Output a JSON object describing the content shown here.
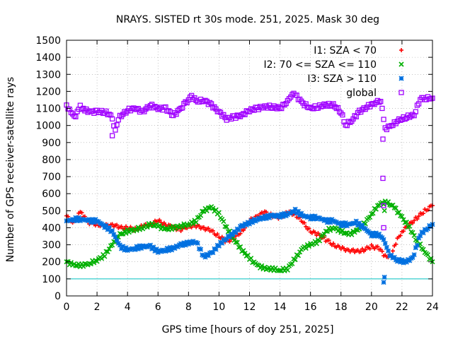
{
  "chart_data": {
    "type": "scatter",
    "title": "NRAYS. SISTED rt 30s mode. 251, 2025. Mask 30 deg",
    "xlabel": "GPS time [hours of doy 251, 2025]",
    "ylabel": "Number of GPS receiver-satellite rays",
    "xlim": [
      0,
      24
    ],
    "ylim": [
      0,
      1500
    ],
    "xticks": [
      0,
      2,
      4,
      6,
      8,
      10,
      12,
      14,
      16,
      18,
      20,
      22,
      24
    ],
    "yticks": [
      0,
      100,
      200,
      300,
      400,
      500,
      600,
      700,
      800,
      900,
      1000,
      1100,
      1200,
      1300,
      1400,
      1500
    ],
    "grid": true,
    "legend_position": "top-right",
    "threshold_line": {
      "y": 100,
      "color": "#00c0c0"
    },
    "series": [
      {
        "name": "I1: SZA < 70",
        "marker": "+",
        "color": "#ff0000",
        "x": [
          0,
          0.3,
          0.6,
          0.9,
          1.2,
          1.5,
          2,
          2.5,
          3,
          3.5,
          4,
          4.5,
          5,
          5.5,
          6,
          6.5,
          7,
          7.5,
          8,
          8.5,
          9,
          9.5,
          10,
          10.5,
          11,
          11.5,
          12,
          12.5,
          13,
          13.5,
          14,
          14.5,
          15,
          15.5,
          16,
          16.5,
          17,
          17.5,
          18,
          18.5,
          19,
          19.5,
          20,
          20.5,
          20.9,
          21.3,
          21.7,
          22,
          22.5,
          23,
          23.5,
          24
        ],
        "y": [
          470,
          430,
          450,
          490,
          460,
          430,
          420,
          410,
          420,
          400,
          400,
          390,
          410,
          420,
          440,
          420,
          400,
          390,
          410,
          410,
          400,
          380,
          350,
          320,
          340,
          380,
          440,
          470,
          490,
          470,
          460,
          490,
          480,
          430,
          380,
          360,
          330,
          300,
          280,
          270,
          260,
          270,
          290,
          280,
          230,
          240,
          330,
          380,
          420,
          460,
          500,
          530
        ]
      },
      {
        "name": "I2: 70 <= SZA <= 110",
        "marker": "x",
        "color": "#00b000",
        "x": [
          0,
          0.5,
          1,
          1.5,
          2,
          2.5,
          3,
          3.5,
          4,
          4.5,
          5,
          5.5,
          6,
          6.5,
          7,
          7.5,
          8,
          8.5,
          9,
          9.5,
          10,
          10.5,
          11,
          11.5,
          12,
          12.5,
          13,
          13.5,
          14,
          14.5,
          15,
          15.5,
          16,
          16.5,
          17,
          17.5,
          18,
          18.5,
          19,
          19.5,
          20,
          20.5,
          21,
          21.5,
          22,
          22.5,
          23,
          23.5,
          24
        ],
        "y": [
          200,
          180,
          180,
          190,
          210,
          240,
          300,
          360,
          380,
          390,
          400,
          420,
          410,
          390,
          400,
          410,
          420,
          440,
          500,
          520,
          480,
          400,
          330,
          270,
          220,
          180,
          160,
          160,
          150,
          160,
          220,
          280,
          300,
          320,
          380,
          400,
          380,
          360,
          380,
          420,
          480,
          540,
          550,
          520,
          460,
          400,
          320,
          260,
          200
        ]
      },
      {
        "name": "I3: SZA > 110",
        "marker": "*",
        "color": "#0070e0",
        "x": [
          0,
          0.5,
          1,
          1.5,
          2,
          2.5,
          3,
          3.5,
          4,
          4.5,
          5,
          5.5,
          6,
          6.5,
          7,
          7.5,
          8,
          8.5,
          9,
          9.5,
          10,
          10.5,
          11,
          11.5,
          12,
          12.5,
          13,
          13.5,
          14,
          14.5,
          15,
          15.5,
          16,
          16.5,
          17,
          17.5,
          18,
          18.5,
          19,
          19.5,
          20,
          20.5,
          20.8,
          21.2,
          21.7,
          22.2,
          22.7,
          23.2,
          23.7,
          24
        ],
        "y": [
          440,
          450,
          450,
          440,
          440,
          410,
          380,
          290,
          270,
          280,
          290,
          290,
          260,
          270,
          280,
          300,
          310,
          320,
          230,
          250,
          300,
          340,
          370,
          410,
          430,
          450,
          460,
          470,
          470,
          480,
          500,
          470,
          460,
          460,
          440,
          440,
          420,
          420,
          430,
          400,
          360,
          360,
          330,
          240,
          210,
          200,
          220,
          360,
          400,
          420
        ]
      },
      {
        "name": "global",
        "marker": "square",
        "color": "#a000ff",
        "x": [
          0,
          0.3,
          0.6,
          0.9,
          1.2,
          1.6,
          2,
          2.5,
          2.9,
          3.2,
          3.5,
          4,
          4.5,
          5,
          5.5,
          6,
          6.5,
          7,
          7.4,
          7.8,
          8.2,
          8.6,
          9,
          9.5,
          10,
          10.5,
          11,
          11.5,
          12,
          12.5,
          13,
          13.5,
          14,
          14.5,
          14.8,
          15.1,
          15.5,
          16,
          16.5,
          17,
          17.5,
          18,
          18.3,
          18.7,
          19.2,
          19.7,
          20.2,
          20.6,
          20.9,
          21.3,
          21.8,
          22.3,
          22.8,
          23.2,
          23.6,
          24
        ],
        "y": [
          1120,
          1070,
          1060,
          1110,
          1090,
          1080,
          1080,
          1080,
          1060,
          980,
          1050,
          1090,
          1100,
          1080,
          1120,
          1100,
          1100,
          1060,
          1090,
          1130,
          1170,
          1140,
          1150,
          1120,
          1080,
          1040,
          1050,
          1060,
          1090,
          1100,
          1110,
          1110,
          1100,
          1140,
          1190,
          1170,
          1130,
          1100,
          1110,
          1120,
          1120,
          1080,
          1000,
          1030,
          1080,
          1110,
          1130,
          1150,
          980,
          1000,
          1030,
          1050,
          1060,
          1160,
          1160,
          1160
        ]
      }
    ],
    "outliers": [
      {
        "series": "global",
        "x": 20.75,
        "y": 690
      },
      {
        "series": "global",
        "x": 20.75,
        "y": 920
      },
      {
        "series": "global",
        "x": 20.8,
        "y": 530
      },
      {
        "series": "global",
        "x": 20.8,
        "y": 400
      },
      {
        "series": "global",
        "x": 3,
        "y": 940
      },
      {
        "series": "I3: SZA > 110",
        "x": 20.8,
        "y": 80
      },
      {
        "series": "I3: SZA > 110",
        "x": 20.85,
        "y": 110
      },
      {
        "series": "I2: 70 <= SZA <= 110",
        "x": 20.85,
        "y": 500
      }
    ]
  }
}
